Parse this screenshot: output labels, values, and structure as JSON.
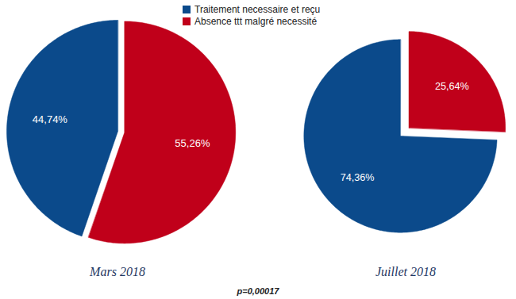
{
  "chart_data": [
    {
      "type": "pie",
      "title": "Mars 2018",
      "categories": [
        "Traitement necessaire et reçu",
        "Absence ttt malgré necessité"
      ],
      "values": [
        44.74,
        55.26
      ],
      "value_labels": [
        "44,74%",
        "55,26%"
      ],
      "colors": [
        "#0b4a8b",
        "#c0001a"
      ],
      "data_labels": true,
      "legend": "top"
    },
    {
      "type": "pie",
      "title": "Juillet 2018",
      "categories": [
        "Traitement necessaire et reçu",
        "Absence ttt malgré necessité"
      ],
      "values": [
        74.36,
        25.64
      ],
      "value_labels": [
        "74,36%",
        "25,64%"
      ],
      "colors": [
        "#0b4a8b",
        "#c0001a"
      ],
      "data_labels": true,
      "legend": "top"
    }
  ],
  "annotation": "p=0,00017"
}
